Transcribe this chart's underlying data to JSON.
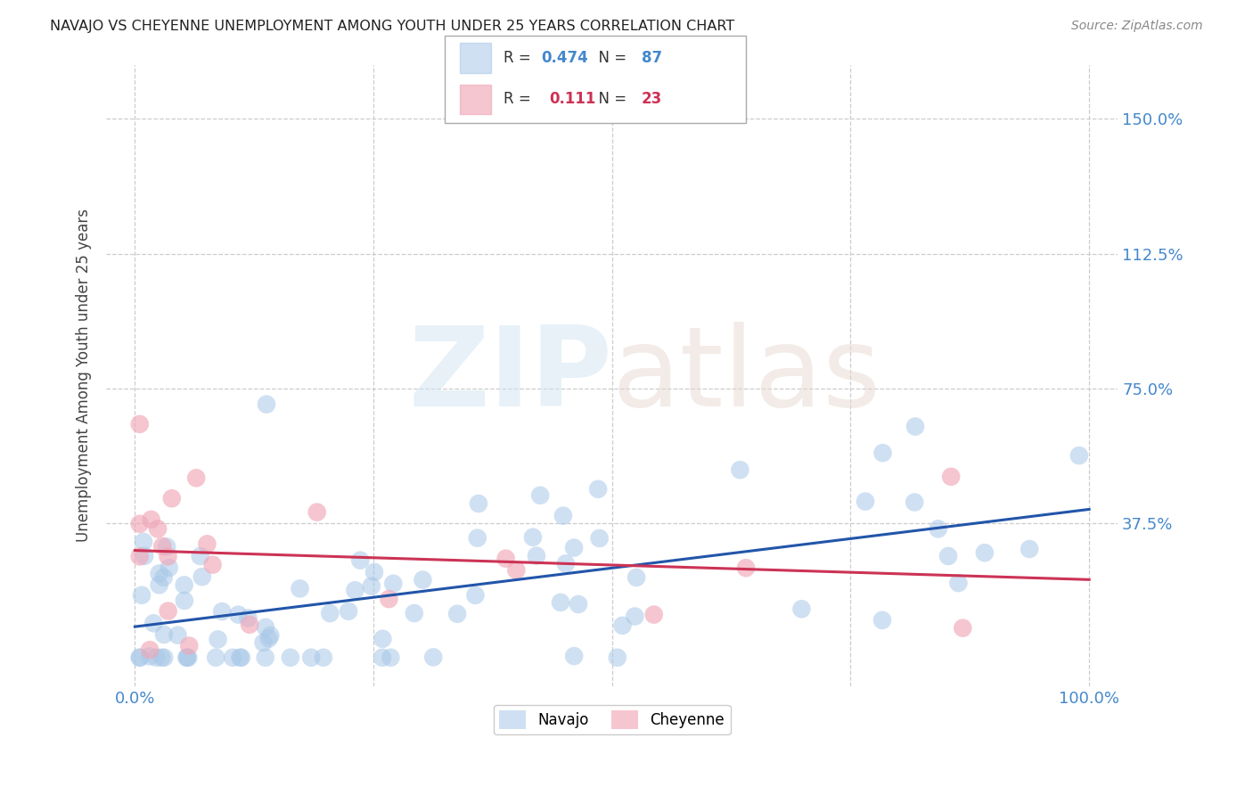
{
  "title": "NAVAJO VS CHEYENNE UNEMPLOYMENT AMONG YOUTH UNDER 25 YEARS CORRELATION CHART",
  "source": "Source: ZipAtlas.com",
  "ylabel": "Unemployment Among Youth under 25 years",
  "navajo_R": 0.474,
  "navajo_N": 87,
  "cheyenne_R": 0.111,
  "cheyenne_N": 23,
  "navajo_color": "#a8c8e8",
  "cheyenne_color": "#f0a8b8",
  "navajo_line_color": "#2255aa",
  "cheyenne_line_color": "#cc3355",
  "background_color": "#ffffff",
  "grid_color": "#cccccc",
  "title_color": "#222222",
  "tick_color": "#4488cc",
  "ylabel_color": "#444444",
  "watermark_zip_color": "#d0e4f0",
  "watermark_atlas_color": "#e8d8d0",
  "legend_border_color": "#aaaaaa",
  "legend_text_color": "#333333",
  "source_color": "#888888",
  "x_min": 0,
  "x_max": 100,
  "y_min": 0,
  "y_max": 160,
  "yticks": [
    37.5,
    75.0,
    112.5,
    150.0
  ],
  "ytick_labels": [
    "37.5%",
    "75.0%",
    "112.5%",
    "150.0%"
  ],
  "xtick_labels": [
    "0.0%",
    "100.0%"
  ],
  "navajo_seed": 42,
  "cheyenne_seed": 7
}
